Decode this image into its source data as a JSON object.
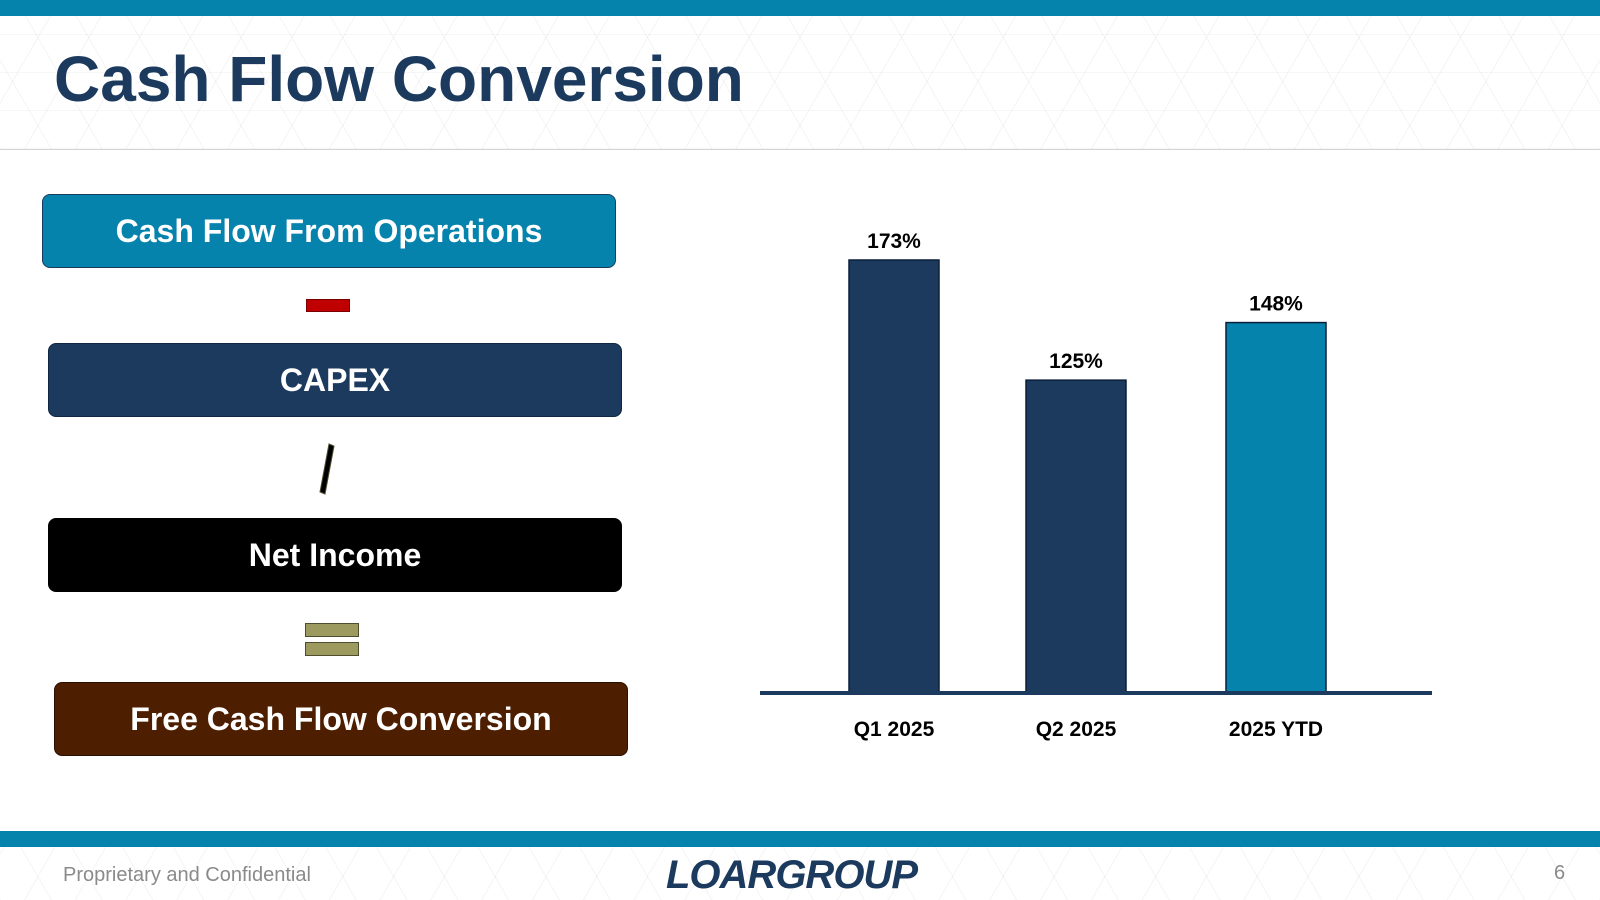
{
  "slide": {
    "title": "Cash Flow Conversion",
    "page_number": "6"
  },
  "formula": {
    "operations_label": "Cash Flow From Operations",
    "capex_label": "CAPEX",
    "net_income_label": "Net Income",
    "fcf_label": "Free Cash Flow Conversion"
  },
  "footer": {
    "confidential_text": "Proprietary and Confidential",
    "logo_text": "LOARGROUP"
  },
  "colors": {
    "brand_blue": "#0683ad",
    "navy": "#1b3a5e",
    "brown": "#4d1e00",
    "minus_red": "#c00000",
    "equals_olive": "#9c9a5e"
  },
  "chart_data": {
    "type": "bar",
    "title": "",
    "xlabel": "",
    "ylabel": "",
    "categories": [
      "Q1 2025",
      "Q2 2025",
      "2025 YTD"
    ],
    "values": [
      173,
      125,
      148
    ],
    "value_labels": [
      "173%",
      "125%",
      "148%"
    ],
    "unit": "%",
    "bar_colors": [
      "#1b3a5e",
      "#1b3a5e",
      "#0683ad"
    ],
    "ylim": [
      0,
      173
    ],
    "grid": false,
    "legend": "none"
  }
}
